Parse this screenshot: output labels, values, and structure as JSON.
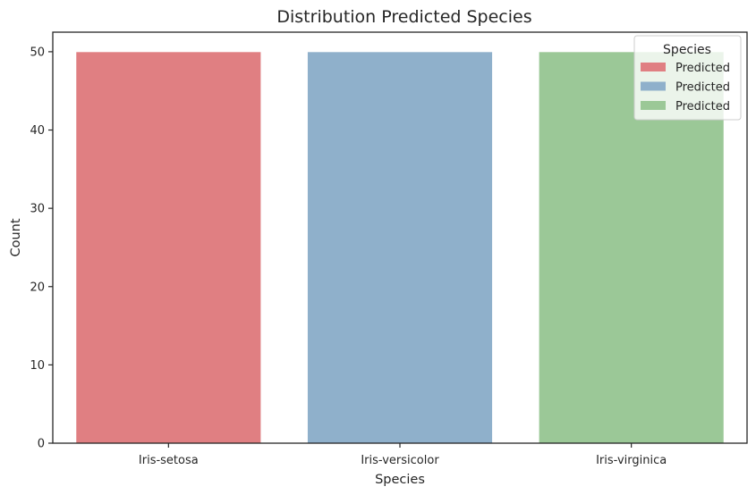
{
  "chart_data": {
    "type": "bar",
    "title": "Distribution Predicted Species",
    "xlabel": "Species",
    "ylabel": "Count",
    "categories": [
      "Iris-setosa",
      "Iris-versicolor",
      "Iris-virginica"
    ],
    "values": [
      50,
      50,
      50
    ],
    "colors": [
      "#e07f82",
      "#8fb0cb",
      "#9bc897"
    ],
    "ylim": [
      0,
      52.5
    ],
    "yticks": [
      0,
      10,
      20,
      30,
      40,
      50
    ],
    "grid": false,
    "legend": {
      "title": "Species",
      "placement": "top-right",
      "entries": [
        "Predicted",
        "Predicted",
        "Predicted"
      ]
    }
  }
}
